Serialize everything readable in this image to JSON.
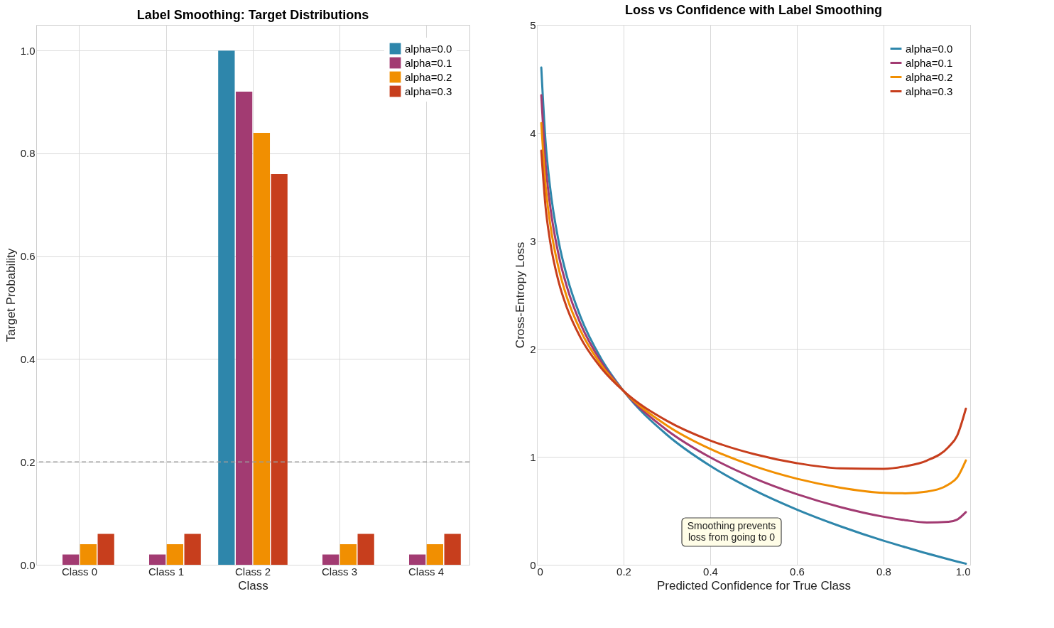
{
  "chart_data": [
    {
      "type": "bar",
      "title": "Label Smoothing: Target Distributions",
      "xlabel": "Class",
      "ylabel": "Target Probability",
      "categories": [
        "Class 0",
        "Class 1",
        "Class 2",
        "Class 3",
        "Class 4"
      ],
      "series": [
        {
          "name": "alpha=0.0",
          "color": "#2e86ab",
          "values": [
            0,
            0,
            1.0,
            0,
            0
          ]
        },
        {
          "name": "alpha=0.1",
          "color": "#a23b72",
          "values": [
            0.02,
            0.02,
            0.92,
            0.02,
            0.02
          ]
        },
        {
          "name": "alpha=0.2",
          "color": "#f18f01",
          "values": [
            0.04,
            0.04,
            0.84,
            0.04,
            0.04
          ]
        },
        {
          "name": "alpha=0.3",
          "color": "#c73e1d",
          "values": [
            0.06,
            0.06,
            0.76,
            0.06,
            0.06
          ]
        }
      ],
      "ylim": [
        0,
        1.05
      ],
      "yticks": [
        {
          "value": 0,
          "label": "0.0"
        },
        0.2,
        0.4,
        0.6,
        0.8,
        {
          "value": 1,
          "label": "1.0"
        }
      ],
      "ref_lines": [
        {
          "axis": "y",
          "value": 0.2,
          "color": "#999999",
          "line_style": "dashed"
        }
      ],
      "grid": true,
      "legend": "top right"
    },
    {
      "type": "line",
      "title": "Loss vs Confidence with Label Smoothing",
      "xlabel": "Predicted Confidence for True Class",
      "ylabel": "Cross-Entropy Loss",
      "x": [
        0.01,
        0.02,
        0.03,
        0.05,
        0.07,
        0.1,
        0.15,
        0.2,
        0.3,
        0.4,
        0.5,
        0.6,
        0.7,
        0.8,
        0.85,
        0.9,
        0.95,
        0.97,
        0.99
      ],
      "series": [
        {
          "name": "alpha=0.0",
          "color": "#2e86ab",
          "values": [
            4.605,
            3.912,
            3.507,
            2.996,
            2.659,
            2.303,
            1.897,
            1.609,
            1.204,
            0.916,
            0.693,
            0.511,
            0.357,
            0.223,
            0.163,
            0.105,
            0.051,
            0.03,
            0.01
          ]
        },
        {
          "name": "alpha=0.1",
          "color": "#a23b72",
          "values": [
            4.349,
            3.711,
            3.339,
            2.871,
            2.563,
            2.238,
            1.869,
            1.609,
            1.247,
            0.995,
            0.804,
            0.654,
            0.535,
            0.445,
            0.413,
            0.392,
            0.398,
            0.419,
            0.488
          ]
        },
        {
          "name": "alpha=0.2",
          "color": "#f18f01",
          "values": [
            4.091,
            3.511,
            3.173,
            2.747,
            2.467,
            2.173,
            1.841,
            1.609,
            1.29,
            1.073,
            0.915,
            0.797,
            0.714,
            0.666,
            0.662,
            0.678,
            0.744,
            0.808,
            0.967
          ]
        },
        {
          "name": "alpha=0.3",
          "color": "#c73e1d",
          "values": [
            3.835,
            3.31,
            3.005,
            2.622,
            2.371,
            2.108,
            1.814,
            1.609,
            1.333,
            1.151,
            1.026,
            0.941,
            0.893,
            0.888,
            0.912,
            0.965,
            1.091,
            1.197,
            1.446
          ]
        }
      ],
      "xlim": [
        0,
        1
      ],
      "xticks": [
        0,
        0.2,
        0.4,
        0.6,
        0.8,
        {
          "value": 1,
          "label": "1.0"
        }
      ],
      "ylim": [
        0,
        5
      ],
      "yticks": [
        0,
        1,
        2,
        3,
        4,
        5
      ],
      "annotations": [
        "Smoothing prevents\nloss from going to 0"
      ],
      "grid": true,
      "legend": "top right",
      "line_style": "solid",
      "marker": "none"
    }
  ]
}
